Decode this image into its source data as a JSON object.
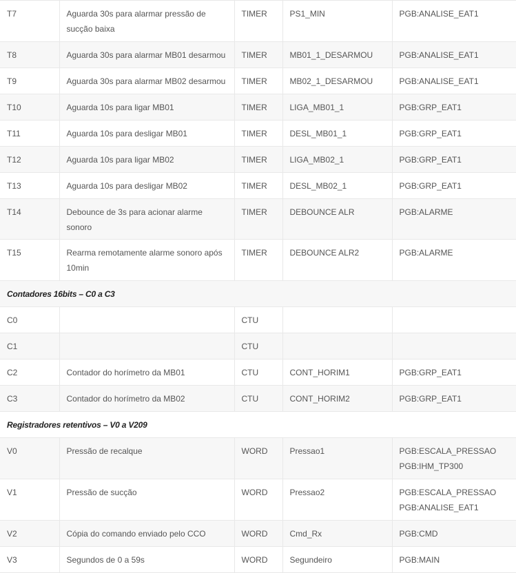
{
  "rows": [
    {
      "type": "row",
      "id": "T7",
      "desc": "Aguarda 30s para alarmar pressão de sucção baixa",
      "kind": "TIMER",
      "tag": "PS1_MIN",
      "ref": [
        "PGB:ANALISE_EAT1"
      ]
    },
    {
      "type": "row",
      "id": "T8",
      "desc": "Aguarda 30s para alarmar MB01 desarmou",
      "kind": "TIMER",
      "tag": "MB01_1_DESARMOU",
      "ref": [
        "PGB:ANALISE_EAT1"
      ]
    },
    {
      "type": "row",
      "id": "T9",
      "desc": "Aguarda 30s para alarmar MB02 desarmou",
      "kind": "TIMER",
      "tag": "MB02_1_DESARMOU",
      "ref": [
        "PGB:ANALISE_EAT1"
      ]
    },
    {
      "type": "row",
      "id": "T10",
      "desc": "Aguarda 10s para ligar MB01",
      "kind": "TIMER",
      "tag": "LIGA_MB01_1",
      "ref": [
        "PGB:GRP_EAT1"
      ]
    },
    {
      "type": "row",
      "id": "T11",
      "desc": "Aguarda 10s para desligar MB01",
      "kind": "TIMER",
      "tag": "DESL_MB01_1",
      "ref": [
        "PGB:GRP_EAT1"
      ]
    },
    {
      "type": "row",
      "id": "T12",
      "desc": "Aguarda 10s para ligar MB02",
      "kind": "TIMER",
      "tag": "LIGA_MB02_1",
      "ref": [
        "PGB:GRP_EAT1"
      ]
    },
    {
      "type": "row",
      "id": "T13",
      "desc": "Aguarda 10s para desligar MB02",
      "kind": "TIMER",
      "tag": "DESL_MB02_1",
      "ref": [
        "PGB:GRP_EAT1"
      ]
    },
    {
      "type": "row",
      "id": "T14",
      "desc": "Debounce de 3s para acionar alarme sonoro",
      "kind": "TIMER",
      "tag": "DEBOUNCE ALR",
      "ref": [
        "PGB:ALARME"
      ]
    },
    {
      "type": "row",
      "id": "T15",
      "desc": "Rearma remotamente alarme sonoro após 10min",
      "kind": "TIMER",
      "tag": "DEBOUNCE ALR2",
      "ref": [
        "PGB:ALARME"
      ]
    },
    {
      "type": "section",
      "title": "Contadores 16bits – C0 a C3"
    },
    {
      "type": "row",
      "id": "C0",
      "desc": "",
      "kind": "CTU",
      "tag": "",
      "ref": []
    },
    {
      "type": "row",
      "id": "C1",
      "desc": "",
      "kind": "CTU",
      "tag": "",
      "ref": []
    },
    {
      "type": "row",
      "id": "C2",
      "desc": "Contador do horímetro da MB01",
      "kind": "CTU",
      "tag": "CONT_HORIM1",
      "ref": [
        "PGB:GRP_EAT1"
      ]
    },
    {
      "type": "row",
      "id": "C3",
      "desc": "Contador do horímetro da MB02",
      "kind": "CTU",
      "tag": "CONT_HORIM2",
      "ref": [
        "PGB:GRP_EAT1"
      ]
    },
    {
      "type": "section",
      "title": "Registradores retentivos – V0 a V209"
    },
    {
      "type": "row",
      "id": "V0",
      "desc": "Pressão de recalque",
      "kind": "WORD",
      "tag": "Pressao1",
      "ref": [
        "PGB:ESCALA_PRESSAO",
        "PGB:IHM_TP300"
      ]
    },
    {
      "type": "row",
      "id": "V1",
      "desc": "Pressão de sucção",
      "kind": "WORD",
      "tag": "Pressao2",
      "ref": [
        "PGB:ESCALA_PRESSAO",
        "PGB:ANALISE_EAT1"
      ]
    },
    {
      "type": "row",
      "id": "V2",
      "desc": "Cópia do comando enviado pelo CCO",
      "kind": "WORD",
      "tag": "Cmd_Rx",
      "ref": [
        "PGB:CMD"
      ]
    },
    {
      "type": "row",
      "id": "V3",
      "desc": "Segundos de 0 a 59s",
      "kind": "WORD",
      "tag": "Segundeiro",
      "ref": [
        "PGB:MAIN"
      ]
    }
  ]
}
